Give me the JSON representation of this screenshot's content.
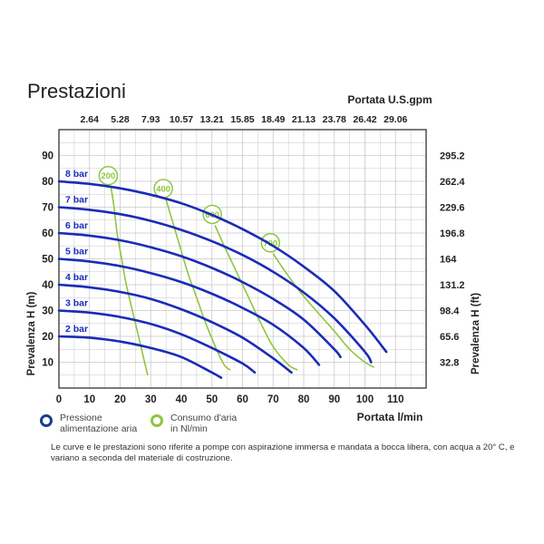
{
  "page_title": "Prestazioni",
  "colors": {
    "pressure_curve": "#1a2bb8",
    "air_curve": "#8ec63f",
    "grid": "#c8c8c8",
    "frame": "#222222"
  },
  "legend": {
    "pressure": {
      "label": "Pressione\nalimentazione aria",
      "color": "#1a3f8a",
      "icon": "ring"
    },
    "air": {
      "label": "Consumo d'aria\nin Nl/min",
      "color": "#8ec63f",
      "icon": "ring"
    }
  },
  "note": "Le curve e le prestazioni sono riferite a pompe con aspirazione immersa e mandata a bocca libera, con acqua a 20° C, e variano a seconda del materiale di costruzione.",
  "chart_data": {
    "type": "line",
    "xlabel": "Portata  l/min",
    "ylabel": "Prevalenza H  (m)",
    "x2label": "Portata U.S.gpm",
    "y2label": "Prevalenza H  (ft)",
    "xlim": [
      0,
      120
    ],
    "ylim": [
      0,
      100
    ],
    "grid": true,
    "x_ticks": [
      "0",
      "10",
      "20",
      "30",
      "40",
      "50",
      "60",
      "70",
      "80",
      "90",
      "100",
      "110"
    ],
    "y_ticks": [
      "10",
      "20",
      "30",
      "40",
      "50",
      "60",
      "70",
      "80",
      "90"
    ],
    "x2_ticks": [
      "2.64",
      "5.28",
      "7.93",
      "10.57",
      "13.21",
      "15.85",
      "18.49",
      "21.13",
      "23.78",
      "26.42",
      "29.06"
    ],
    "y2_ticks": [
      "32.8",
      "65.6",
      "98.4",
      "131.2",
      "164",
      "196.8",
      "229.6",
      "262.4",
      "295.2"
    ],
    "series": [
      {
        "name": "2 bar",
        "values": [
          [
            0,
            20
          ],
          [
            10,
            19.5
          ],
          [
            20,
            18
          ],
          [
            30,
            15.5
          ],
          [
            40,
            12
          ],
          [
            50,
            6
          ],
          [
            53,
            4
          ]
        ]
      },
      {
        "name": "3 bar",
        "values": [
          [
            0,
            30
          ],
          [
            10,
            29.2
          ],
          [
            20,
            27.5
          ],
          [
            30,
            24.8
          ],
          [
            40,
            20.8
          ],
          [
            50,
            15.5
          ],
          [
            60,
            9.5
          ],
          [
            64,
            6
          ]
        ]
      },
      {
        "name": "4 bar",
        "values": [
          [
            0,
            40
          ],
          [
            10,
            39
          ],
          [
            20,
            37.2
          ],
          [
            30,
            34.5
          ],
          [
            40,
            30.5
          ],
          [
            50,
            25.5
          ],
          [
            60,
            19.5
          ],
          [
            70,
            11.5
          ],
          [
            76,
            6
          ]
        ]
      },
      {
        "name": "5 bar",
        "values": [
          [
            0,
            50
          ],
          [
            10,
            49
          ],
          [
            20,
            47.2
          ],
          [
            30,
            44.5
          ],
          [
            40,
            41
          ],
          [
            50,
            36.5
          ],
          [
            60,
            31
          ],
          [
            70,
            24.5
          ],
          [
            80,
            15.5
          ],
          [
            85,
            9
          ]
        ]
      },
      {
        "name": "6 bar",
        "values": [
          [
            0,
            60
          ],
          [
            10,
            59
          ],
          [
            20,
            57.2
          ],
          [
            30,
            54.5
          ],
          [
            40,
            51
          ],
          [
            50,
            46.5
          ],
          [
            60,
            41
          ],
          [
            70,
            34.5
          ],
          [
            80,
            26.5
          ],
          [
            90,
            15
          ],
          [
            92,
            12
          ]
        ]
      },
      {
        "name": "7 bar",
        "values": [
          [
            0,
            70
          ],
          [
            10,
            69
          ],
          [
            20,
            67.3
          ],
          [
            30,
            64.7
          ],
          [
            40,
            61.2
          ],
          [
            50,
            56.8
          ],
          [
            60,
            51.5
          ],
          [
            70,
            45
          ],
          [
            80,
            37
          ],
          [
            90,
            27
          ],
          [
            100,
            14
          ],
          [
            102,
            10
          ]
        ]
      },
      {
        "name": "8 bar",
        "values": [
          [
            0,
            80
          ],
          [
            10,
            79
          ],
          [
            20,
            77.3
          ],
          [
            30,
            74.8
          ],
          [
            40,
            71.5
          ],
          [
            50,
            67
          ],
          [
            60,
            61.5
          ],
          [
            70,
            55
          ],
          [
            80,
            47
          ],
          [
            90,
            37.5
          ],
          [
            100,
            24.5
          ],
          [
            107,
            14
          ]
        ]
      }
    ],
    "air_curves": [
      {
        "name": "200",
        "values": [
          [
            17,
            78
          ],
          [
            18,
            70
          ],
          [
            19,
            60
          ],
          [
            20.5,
            50
          ],
          [
            22,
            40
          ],
          [
            24,
            30
          ],
          [
            26,
            20
          ],
          [
            28,
            10
          ],
          [
            29,
            5
          ]
        ]
      },
      {
        "name": "400",
        "values": [
          [
            35,
            73
          ],
          [
            37,
            65
          ],
          [
            39.5,
            55
          ],
          [
            42,
            45
          ],
          [
            45,
            35
          ],
          [
            48,
            25
          ],
          [
            51.5,
            15
          ],
          [
            54,
            9
          ],
          [
            56,
            7
          ]
        ]
      },
      {
        "name": "600",
        "values": [
          [
            51,
            63
          ],
          [
            54,
            55
          ],
          [
            58,
            45
          ],
          [
            62,
            35
          ],
          [
            66,
            25
          ],
          [
            70,
            16
          ],
          [
            75,
            9
          ],
          [
            78,
            7
          ]
        ]
      },
      {
        "name": "700",
        "values": [
          [
            70,
            52
          ],
          [
            74,
            45
          ],
          [
            79,
            37
          ],
          [
            84,
            30
          ],
          [
            90,
            22
          ],
          [
            95,
            15
          ],
          [
            100,
            10
          ],
          [
            103,
            8
          ]
        ]
      }
    ]
  }
}
